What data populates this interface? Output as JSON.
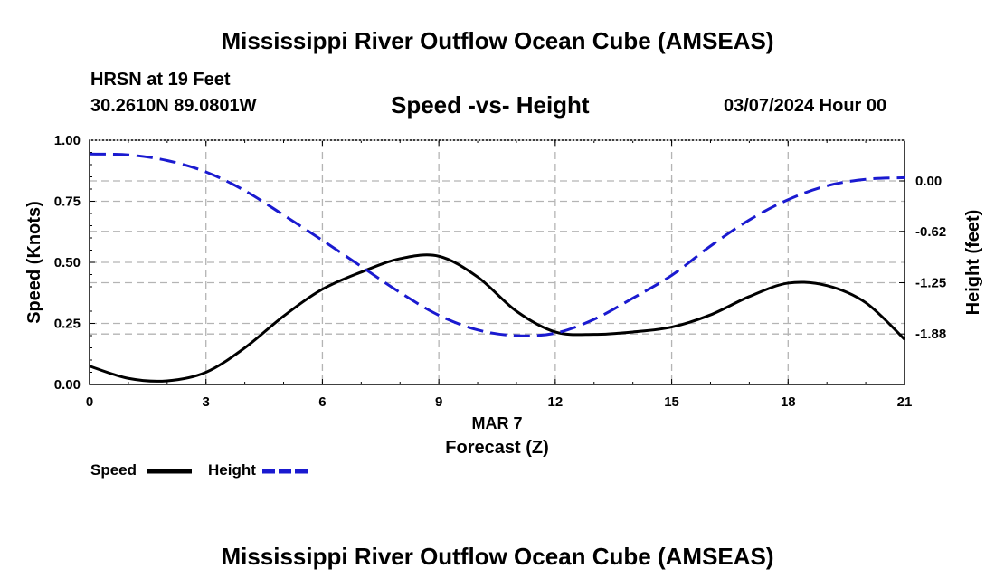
{
  "page": {
    "title_top": "Mississippi River Outflow Ocean Cube (AMSEAS)",
    "title_bottom": "Mississippi River Outflow Ocean Cube (AMSEAS)",
    "station": "HRSN at 19 Feet",
    "coords": "30.2610N  89.0801W",
    "subtitle": "Speed -vs- Height",
    "datetime": "03/07/2024 Hour 00"
  },
  "colors": {
    "speed": "#000000",
    "height": "#1a1ad0",
    "grid": "#b4b4b4"
  },
  "chart_data": {
    "type": "line",
    "x_ticks": [
      "0",
      "3",
      "6",
      "9",
      "12",
      "15",
      "18",
      "21"
    ],
    "xlim": [
      0,
      21
    ],
    "xlabel_date": "MAR 7",
    "xlabel": "Forecast (Z)",
    "ylabel_left": "Speed (Knots)",
    "ylim_left": [
      0,
      1
    ],
    "y_ticks_left": [
      "0.00",
      "0.25",
      "0.50",
      "0.75",
      "1.00"
    ],
    "ylabel_right": "Height (feet)",
    "y_ticks_right": [
      "0.00",
      "-0.62",
      "-1.25",
      "-1.88"
    ],
    "y_tick_values_right": [
      0.0,
      -0.62,
      -1.25,
      -1.88
    ],
    "ylim_right": [
      -2.5,
      0.5
    ],
    "grid": true,
    "legend": {
      "position": "bottom-left",
      "speed_label": "Speed",
      "height_label": "Height"
    },
    "series": [
      {
        "name": "Speed",
        "axis": "left",
        "style": "solid",
        "x": [
          0,
          1,
          2,
          3,
          4,
          5,
          6,
          7,
          8,
          9,
          10,
          11,
          12,
          13,
          14,
          15,
          16,
          17,
          18,
          19,
          20,
          21
        ],
        "y": [
          0.075,
          0.025,
          0.015,
          0.05,
          0.15,
          0.28,
          0.39,
          0.46,
          0.515,
          0.525,
          0.44,
          0.3,
          0.215,
          0.205,
          0.215,
          0.235,
          0.285,
          0.36,
          0.415,
          0.405,
          0.335,
          0.185
        ]
      },
      {
        "name": "Height",
        "axis": "right",
        "style": "dashed",
        "x": [
          0,
          1,
          2,
          3,
          4,
          5,
          6,
          7,
          8,
          9,
          10,
          11,
          12,
          13,
          14,
          15,
          16,
          17,
          18,
          19,
          20,
          21
        ],
        "y": [
          0.33,
          0.32,
          0.25,
          0.11,
          -0.12,
          -0.42,
          -0.73,
          -1.05,
          -1.37,
          -1.65,
          -1.83,
          -1.9,
          -1.87,
          -1.7,
          -1.44,
          -1.16,
          -0.8,
          -0.48,
          -0.23,
          -0.06,
          0.02,
          0.04
        ]
      }
    ]
  }
}
